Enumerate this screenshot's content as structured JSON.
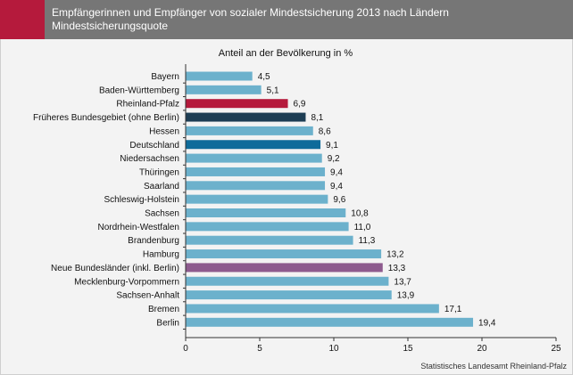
{
  "header": {
    "title_line1": "Empfängerinnen und Empfänger von sozialer Mindestsicherung 2013 nach Ländern",
    "title_line2": "Mindestsicherungsquote",
    "accent_color": "#b51a3c",
    "background_color": "#767676"
  },
  "footnote": "Statistisches Landesamt Rheinland-Pfalz",
  "chart_data": {
    "type": "bar",
    "orientation": "horizontal",
    "title": "Anteil an der Bevölkerung in %",
    "categories": [
      "Bayern",
      "Baden-Württemberg",
      "Rheinland-Pfalz",
      "Früheres Bundesgebiet (ohne Berlin)",
      "Hessen",
      "Deutschland",
      "Niedersachsen",
      "Thüringen",
      "Saarland",
      "Schleswig-Holstein",
      "Sachsen",
      "Nordrhein-Westfalen",
      "Brandenburg",
      "Hamburg",
      "Neue Bundesländer (inkl. Berlin)",
      "Mecklenburg-Vorpommern",
      "Sachsen-Anhalt",
      "Bremen",
      "Berlin"
    ],
    "values": [
      4.5,
      5.1,
      6.9,
      8.1,
      8.6,
      9.1,
      9.2,
      9.4,
      9.4,
      9.6,
      10.8,
      11.0,
      11.3,
      13.2,
      13.3,
      13.7,
      13.9,
      17.1,
      19.4
    ],
    "value_labels": [
      "4,5",
      "5,1",
      "6,9",
      "8,1",
      "8,6",
      "9,1",
      "9,2",
      "9,4",
      "9,4",
      "9,6",
      "10,8",
      "11,0",
      "11,3",
      "13,2",
      "13,3",
      "13,7",
      "13,9",
      "17,1",
      "19,4"
    ],
    "colors": [
      "#6cb1cc",
      "#6cb1cc",
      "#b51a3c",
      "#1d3d54",
      "#6cb1cc",
      "#0e6b9a",
      "#6cb1cc",
      "#6cb1cc",
      "#6cb1cc",
      "#6cb1cc",
      "#6cb1cc",
      "#6cb1cc",
      "#6cb1cc",
      "#6cb1cc",
      "#8d5b8e",
      "#6cb1cc",
      "#6cb1cc",
      "#6cb1cc",
      "#6cb1cc"
    ],
    "xlim": [
      0,
      25
    ],
    "xticks": [
      0,
      5,
      10,
      15,
      20,
      25
    ],
    "grid": false
  }
}
